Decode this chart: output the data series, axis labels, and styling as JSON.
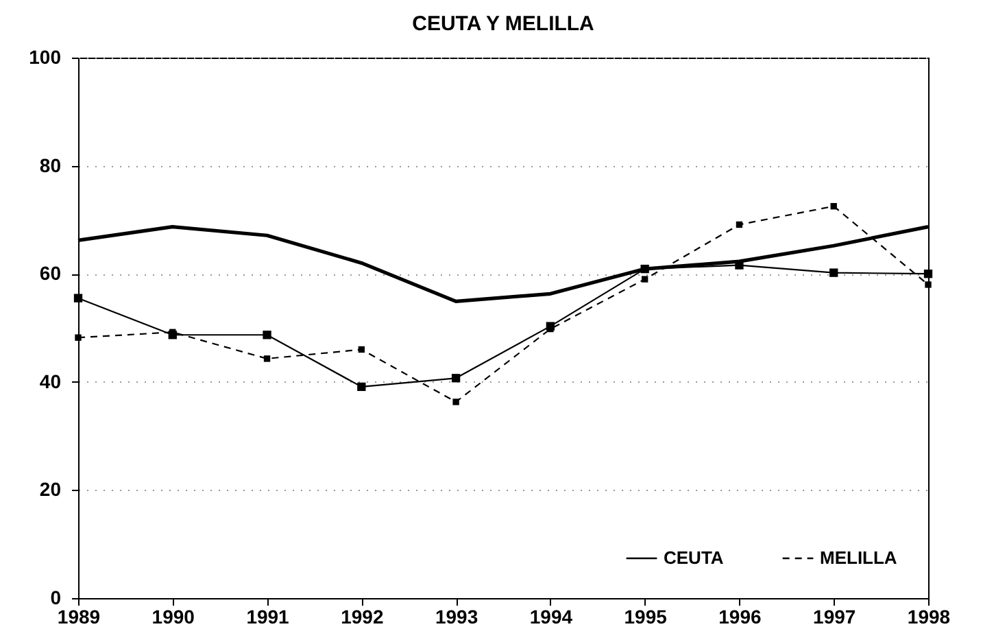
{
  "chart_data": {
    "type": "line",
    "title": "CEUTA Y MELILLA",
    "x": [
      1989,
      1990,
      1991,
      1992,
      1993,
      1994,
      1995,
      1996,
      1997,
      1998
    ],
    "series": [
      {
        "color": "#000000",
        "marker": "none",
        "line_style": "solid",
        "values": [
          66.2,
          68.7,
          67.1,
          62,
          54.9,
          56.3,
          60.9,
          62.3,
          65.2,
          68.7
        ]
      },
      {
        "name": "CEUTA",
        "color": "#000000",
        "marker": "square",
        "line_style": "solid",
        "values": [
          55.5,
          48.7,
          48.7,
          39.1,
          40.7,
          50.3,
          60.9,
          61.6,
          60.2,
          60
        ]
      },
      {
        "name": "MELILLA",
        "color": "#000000",
        "marker": "square",
        "line_style": "dashed",
        "values": [
          48.2,
          49.2,
          44.3,
          46,
          36.3,
          49.8,
          59,
          69.1,
          72.5,
          58
        ]
      }
    ],
    "xlim": [
      1989,
      1998
    ],
    "xticks": [
      1989,
      1990,
      1991,
      1992,
      1993,
      1994,
      1995,
      1996,
      1997,
      1998
    ],
    "ylim": [
      0,
      100
    ],
    "yticks": [
      0,
      20,
      40,
      60,
      80,
      100
    ],
    "grid": "y",
    "legend": "bottom right"
  }
}
